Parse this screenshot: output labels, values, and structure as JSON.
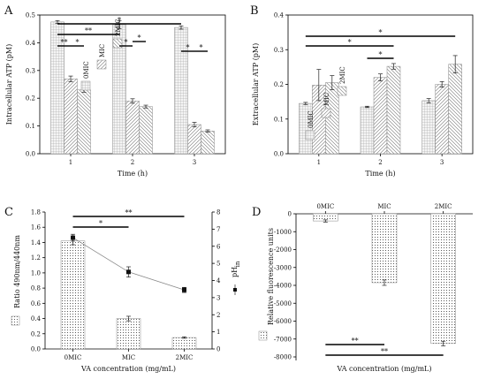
{
  "chart_data": [
    {
      "panel": "A",
      "type": "bar",
      "categories": [
        "1",
        "2",
        "3"
      ],
      "series": [
        {
          "name": "0MIC",
          "values": [
            0.475,
            0.465,
            0.455
          ],
          "errors": [
            0.005,
            0.015,
            0.006
          ]
        },
        {
          "name": "MIC",
          "values": [
            0.27,
            0.19,
            0.105
          ],
          "errors": [
            0.01,
            0.008,
            0.008
          ]
        },
        {
          "name": "2MIC",
          "values": [
            0.23,
            0.17,
            0.082
          ],
          "errors": [
            0.008,
            0.005,
            0.004
          ]
        }
      ],
      "xlabel": "Time (h)",
      "ylabel": "Intracellular ATP (pM)",
      "ylim": [
        0,
        0.5
      ],
      "yticks": [
        "0.0",
        "0.1",
        "0.2",
        "0.3",
        "0.4",
        "0.5"
      ],
      "legend": "top-right",
      "annotations": [
        {
          "text": "*",
          "from": 1,
          "to": 3
        },
        {
          "text": "**",
          "from": 1,
          "to": 2
        },
        {
          "text": "**",
          "from": "1-0MIC",
          "to": "1-MIC"
        },
        {
          "text": "*",
          "from": "1-MIC",
          "to": "1-2MIC"
        },
        {
          "text": "*",
          "from": "2-0MIC",
          "to": "2-MIC"
        },
        {
          "text": "*",
          "from": "2-MIC",
          "to": "2-2MIC"
        },
        {
          "text": "*",
          "from": "3-0MIC",
          "to": "3-MIC"
        },
        {
          "text": "*",
          "from": "3-MIC",
          "to": "3-2MIC"
        }
      ]
    },
    {
      "panel": "B",
      "type": "bar",
      "categories": [
        "1",
        "2",
        "3"
      ],
      "series": [
        {
          "name": "0MIC",
          "values": [
            0.145,
            0.135,
            0.153
          ],
          "errors": [
            0.003,
            0.002,
            0.006
          ]
        },
        {
          "name": "MIC",
          "values": [
            0.198,
            0.22,
            0.2
          ],
          "errors": [
            0.045,
            0.01,
            0.008
          ]
        },
        {
          "name": "2MIC",
          "values": [
            0.205,
            0.252,
            0.258
          ],
          "errors": [
            0.02,
            0.008,
            0.025
          ]
        }
      ],
      "xlabel": "Time (h)",
      "ylabel": "Extracellular ATP (pM)",
      "ylim": [
        0,
        0.4
      ],
      "yticks": [
        "0.0",
        "0.1",
        "0.2",
        "0.3",
        "0.4"
      ],
      "legend": "top-right",
      "annotations": [
        {
          "text": "*",
          "from": "1-0MIC",
          "to": "3-2MIC"
        },
        {
          "text": "*",
          "from": "1-0MIC",
          "to": "2-2MIC"
        },
        {
          "text": "*",
          "from": "2-0MIC",
          "to": "2-2MIC"
        }
      ]
    },
    {
      "panel": "C",
      "type": "bar",
      "categories": [
        "0MIC",
        "MIC",
        "2MIC"
      ],
      "values": [
        1.42,
        0.4,
        0.15
      ],
      "errors": [
        0.05,
        0.03,
        0.01
      ],
      "line": {
        "name": "pH",
        "sub": "in",
        "values": [
          6.5,
          4.5,
          3.45
        ],
        "errors": [
          0.2,
          0.3,
          0.15
        ]
      },
      "xlabel": "VA concentration (mg/mL)",
      "ylabel": "Ratio 490nm/440nm",
      "ylim": [
        0,
        1.8
      ],
      "yticks": [
        "0.0",
        "0.2",
        "0.4",
        "0.6",
        "0.8",
        "1.0",
        "1.2",
        "1.4",
        "1.6",
        "1.8"
      ],
      "y2lim": [
        0,
        8
      ],
      "y2ticks": [
        "0",
        "1",
        "2",
        "3",
        "4",
        "5",
        "6",
        "7",
        "8"
      ],
      "annotations": [
        {
          "text": "*",
          "from": "0MIC",
          "to": "MIC"
        },
        {
          "text": "**",
          "from": "0MIC",
          "to": "2MIC"
        }
      ]
    },
    {
      "panel": "D",
      "type": "bar",
      "categories": [
        "0MIC",
        "MIC",
        "2MIC"
      ],
      "values": [
        -400,
        -3850,
        -7250
      ],
      "errors": [
        60,
        150,
        130
      ],
      "xlabel": "VA concentration (mg/mL)",
      "ylabel": "Relative fluorescence units",
      "ylim": [
        -8000,
        0
      ],
      "yticks": [
        "-8000",
        "-7000",
        "-6000",
        "-5000",
        "-4000",
        "-3000",
        "-2000",
        "-1000",
        "0"
      ],
      "annotations": [
        {
          "text": "**",
          "from": "0MIC",
          "to": "MIC"
        },
        {
          "text": "**",
          "from": "0MIC",
          "to": "2MIC"
        }
      ]
    }
  ]
}
